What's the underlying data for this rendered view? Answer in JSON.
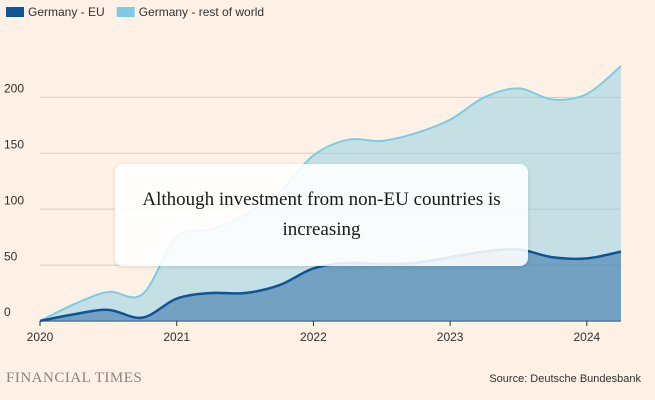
{
  "chart_data": {
    "type": "area",
    "annotation": "Although investment from non-EU countries is increasing",
    "brand": "FINANCIAL TIMES",
    "source": "Source: Deutsche Bundesbank",
    "x": [
      2020,
      2020.25,
      2020.5,
      2020.75,
      2021,
      2021.25,
      2021.5,
      2021.75,
      2022,
      2022.25,
      2022.5,
      2022.75,
      2023,
      2023.25,
      2023.5,
      2023.75,
      2024,
      2024.25
    ],
    "series": [
      {
        "name": "Germany - EU",
        "color": "#0f5499",
        "values": [
          0,
          6,
          10,
          3,
          20,
          25,
          25,
          32,
          47,
          52,
          51,
          52,
          57,
          62,
          64,
          57,
          56,
          62
        ]
      },
      {
        "name": "Germany - rest of world",
        "color": "#7ccde3",
        "values": [
          0,
          15,
          26,
          24,
          75,
          82,
          95,
          115,
          148,
          162,
          161,
          168,
          180,
          200,
          208,
          198,
          203,
          228
        ]
      }
    ],
    "xlim": [
      2020,
      2024.25
    ],
    "xticks": [
      2020,
      2021,
      2022,
      2023,
      2024
    ],
    "ylim": [
      0,
      228
    ],
    "yticks": [
      0,
      50,
      100,
      150,
      200
    ],
    "grid": true
  }
}
